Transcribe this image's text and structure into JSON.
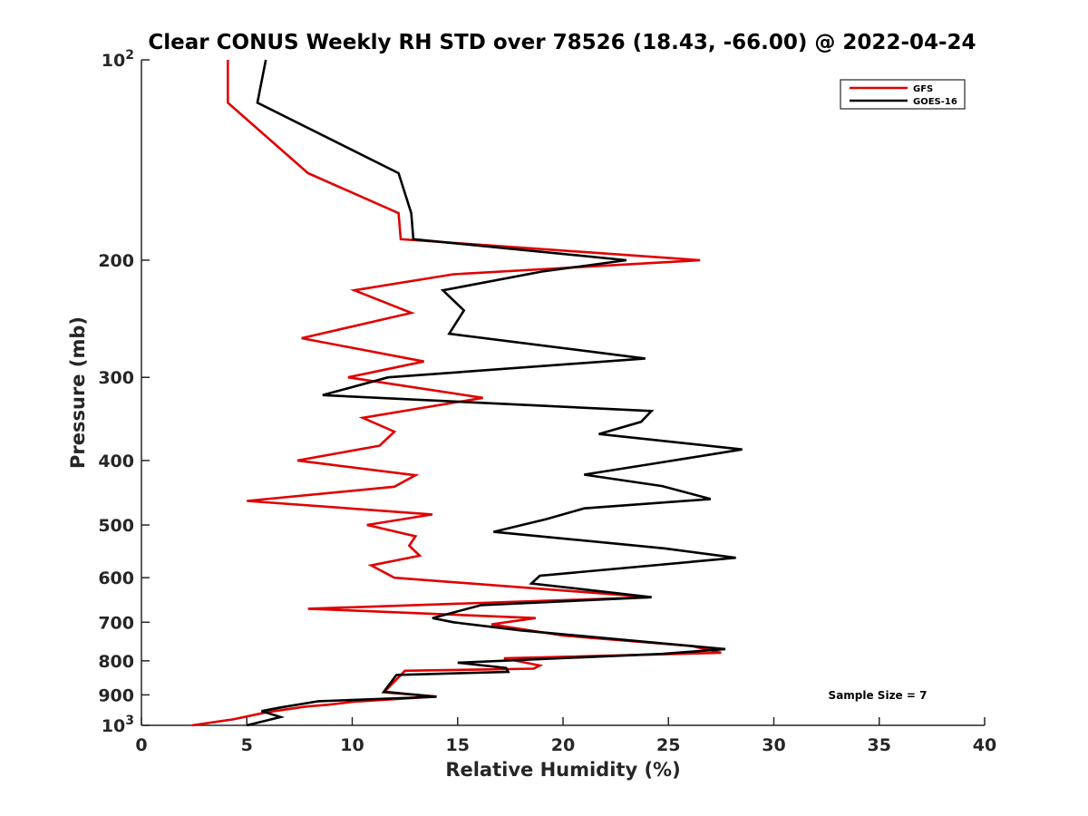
{
  "chart_data": {
    "type": "line",
    "title": "Clear CONUS Weekly RH STD over 78526 (18.43, -66.00) @ 2022-04-24",
    "xlabel": "Relative Humidity (%)",
    "ylabel": "Pressure (mb)",
    "xlim": [
      0,
      40
    ],
    "ylim": [
      100,
      1000
    ],
    "y_scale": "log",
    "y_reversed": true,
    "x_ticks": [
      "0",
      "5",
      "10",
      "15",
      "20",
      "25",
      "30",
      "35",
      "40"
    ],
    "y_ticks": [
      {
        "value": 100,
        "base": "10",
        "exp": "2"
      },
      {
        "value": 200,
        "label": "200"
      },
      {
        "value": 300,
        "label": "300"
      },
      {
        "value": 400,
        "label": "400"
      },
      {
        "value": 500,
        "label": "500"
      },
      {
        "value": 600,
        "label": "600"
      },
      {
        "value": 700,
        "label": "700"
      },
      {
        "value": 800,
        "label": "800"
      },
      {
        "value": 900,
        "label": "900"
      },
      {
        "value": 1000,
        "base": "10",
        "exp": "3"
      }
    ],
    "grid": false,
    "legend_position": "top-right",
    "annotation": "Sample Size = 7",
    "series": [
      {
        "name": "GFS",
        "color": "#e00000",
        "points": [
          {
            "x": 4.1,
            "p": 100
          },
          {
            "x": 4.1,
            "p": 116
          },
          {
            "x": 7.9,
            "p": 148
          },
          {
            "x": 12.2,
            "p": 170
          },
          {
            "x": 12.3,
            "p": 186
          },
          {
            "x": 26.5,
            "p": 200
          },
          {
            "x": 14.8,
            "p": 210
          },
          {
            "x": 10.1,
            "p": 222
          },
          {
            "x": 12.8,
            "p": 240
          },
          {
            "x": 7.6,
            "p": 262
          },
          {
            "x": 13.4,
            "p": 284
          },
          {
            "x": 9.8,
            "p": 300
          },
          {
            "x": 16.2,
            "p": 322
          },
          {
            "x": 10.5,
            "p": 345
          },
          {
            "x": 12.0,
            "p": 362
          },
          {
            "x": 11.3,
            "p": 380
          },
          {
            "x": 7.4,
            "p": 400
          },
          {
            "x": 13.0,
            "p": 421
          },
          {
            "x": 12.0,
            "p": 438
          },
          {
            "x": 5.0,
            "p": 460
          },
          {
            "x": 13.8,
            "p": 482
          },
          {
            "x": 10.7,
            "p": 500
          },
          {
            "x": 13.0,
            "p": 520
          },
          {
            "x": 12.7,
            "p": 537
          },
          {
            "x": 13.2,
            "p": 556
          },
          {
            "x": 10.9,
            "p": 575
          },
          {
            "x": 12.0,
            "p": 600
          },
          {
            "x": 24.2,
            "p": 642
          },
          {
            "x": 7.9,
            "p": 668
          },
          {
            "x": 18.7,
            "p": 690
          },
          {
            "x": 16.6,
            "p": 705
          },
          {
            "x": 20.0,
            "p": 733
          },
          {
            "x": 26.1,
            "p": 760
          },
          {
            "x": 27.5,
            "p": 778
          },
          {
            "x": 17.2,
            "p": 793
          },
          {
            "x": 18.9,
            "p": 813
          },
          {
            "x": 18.6,
            "p": 822
          },
          {
            "x": 12.5,
            "p": 828
          },
          {
            "x": 11.5,
            "p": 892
          },
          {
            "x": 14.0,
            "p": 905
          },
          {
            "x": 10.0,
            "p": 922
          },
          {
            "x": 8.9,
            "p": 931
          },
          {
            "x": 7.8,
            "p": 937
          },
          {
            "x": 6.0,
            "p": 955
          },
          {
            "x": 4.3,
            "p": 980
          },
          {
            "x": 2.4,
            "p": 1000
          }
        ]
      },
      {
        "name": "GOES-16",
        "color": "#000000",
        "points": [
          {
            "x": 5.9,
            "p": 100
          },
          {
            "x": 5.5,
            "p": 116
          },
          {
            "x": 12.2,
            "p": 148
          },
          {
            "x": 12.8,
            "p": 170
          },
          {
            "x": 12.9,
            "p": 186
          },
          {
            "x": 23.0,
            "p": 200
          },
          {
            "x": 19.0,
            "p": 208
          },
          {
            "x": 14.3,
            "p": 222
          },
          {
            "x": 15.3,
            "p": 238
          },
          {
            "x": 14.6,
            "p": 258
          },
          {
            "x": 23.9,
            "p": 281
          },
          {
            "x": 11.7,
            "p": 300
          },
          {
            "x": 8.6,
            "p": 319
          },
          {
            "x": 24.2,
            "p": 337
          },
          {
            "x": 23.7,
            "p": 350
          },
          {
            "x": 21.7,
            "p": 365
          },
          {
            "x": 28.5,
            "p": 385
          },
          {
            "x": 24.8,
            "p": 402
          },
          {
            "x": 21.0,
            "p": 420
          },
          {
            "x": 24.7,
            "p": 437
          },
          {
            "x": 27.0,
            "p": 457
          },
          {
            "x": 21.0,
            "p": 472
          },
          {
            "x": 19.2,
            "p": 490
          },
          {
            "x": 16.7,
            "p": 512
          },
          {
            "x": 24.8,
            "p": 542
          },
          {
            "x": 28.2,
            "p": 560
          },
          {
            "x": 18.9,
            "p": 596
          },
          {
            "x": 18.5,
            "p": 612
          },
          {
            "x": 24.2,
            "p": 642
          },
          {
            "x": 16.1,
            "p": 660
          },
          {
            "x": 13.8,
            "p": 690
          },
          {
            "x": 14.8,
            "p": 700
          },
          {
            "x": 18.0,
            "p": 720
          },
          {
            "x": 27.7,
            "p": 768
          },
          {
            "x": 24.7,
            "p": 781
          },
          {
            "x": 15.0,
            "p": 805
          },
          {
            "x": 17.3,
            "p": 820
          },
          {
            "x": 17.4,
            "p": 831
          },
          {
            "x": 12.1,
            "p": 840
          },
          {
            "x": 11.5,
            "p": 890
          },
          {
            "x": 14.0,
            "p": 906
          },
          {
            "x": 8.4,
            "p": 920
          },
          {
            "x": 6.6,
            "p": 940
          },
          {
            "x": 5.7,
            "p": 952
          },
          {
            "x": 6.6,
            "p": 972
          },
          {
            "x": 5.0,
            "p": 1000
          }
        ]
      }
    ]
  }
}
